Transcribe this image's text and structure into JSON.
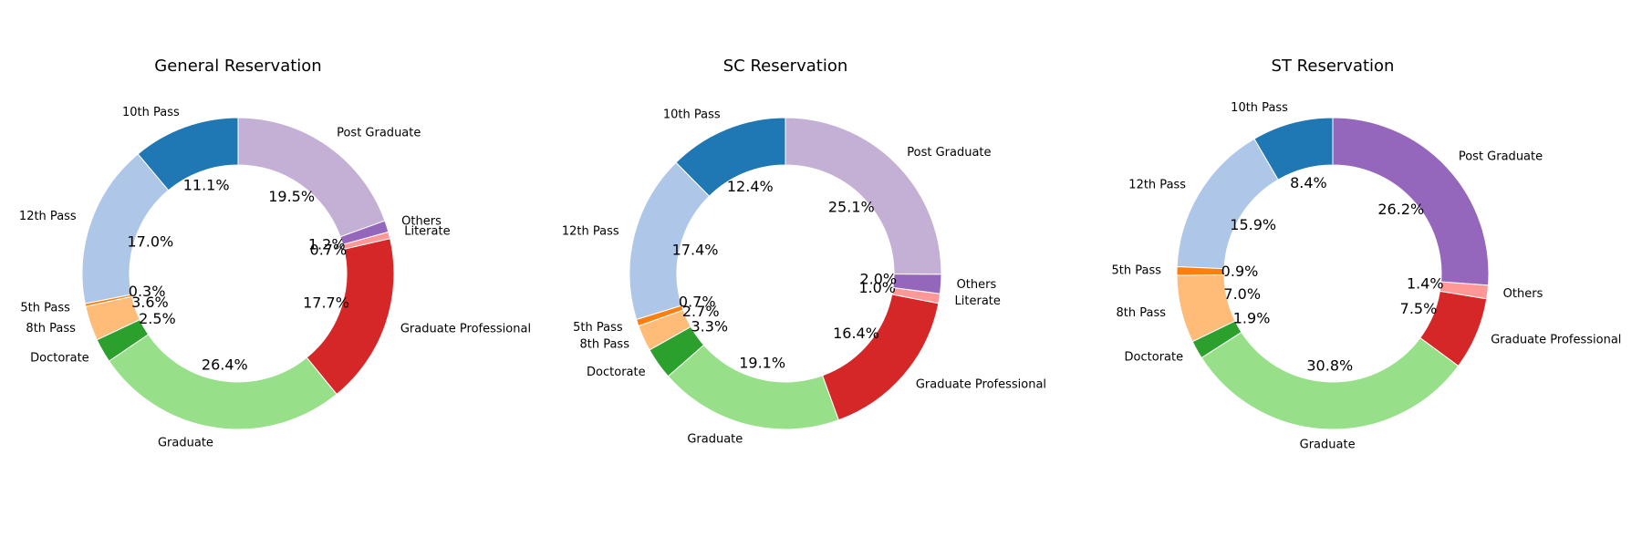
{
  "chart_data": [
    {
      "type": "pie",
      "title": "General Reservation",
      "slices": [
        {
          "label": "10th Pass",
          "value": 11.1,
          "pct_text": "11.1%",
          "color": "#1f77b4"
        },
        {
          "label": "12th Pass",
          "value": 17.0,
          "pct_text": "17.0%",
          "color": "#aec7e8"
        },
        {
          "label": "5th Pass",
          "value": 0.3,
          "pct_text": "0.3%",
          "color": "#ff7f0e"
        },
        {
          "label": "8th Pass",
          "value": 3.6,
          "pct_text": "3.6%",
          "color": "#ffbb78"
        },
        {
          "label": "Doctorate",
          "value": 2.5,
          "pct_text": "2.5%",
          "color": "#2ca02c"
        },
        {
          "label": "Graduate",
          "value": 26.4,
          "pct_text": "26.4%",
          "color": "#98df8a"
        },
        {
          "label": "Graduate Professional",
          "value": 17.7,
          "pct_text": "17.7%",
          "color": "#d62728"
        },
        {
          "label": "Literate",
          "value": 0.7,
          "pct_text": "0.7%",
          "color": "#ff9896"
        },
        {
          "label": "Others",
          "value": 1.2,
          "pct_text": "1.2%",
          "color": "#9467bd"
        },
        {
          "label": "Post Graduate",
          "value": 19.5,
          "pct_text": "19.5%",
          "color": "#c5b0d5"
        }
      ]
    },
    {
      "type": "pie",
      "title": "SC Reservation",
      "slices": [
        {
          "label": "10th Pass",
          "value": 12.4,
          "pct_text": "12.4%",
          "color": "#1f77b4"
        },
        {
          "label": "12th Pass",
          "value": 17.4,
          "pct_text": "17.4%",
          "color": "#aec7e8"
        },
        {
          "label": "5th Pass",
          "value": 0.7,
          "pct_text": "0.7%",
          "color": "#ff7f0e"
        },
        {
          "label": "8th Pass",
          "value": 2.7,
          "pct_text": "2.7%",
          "color": "#ffbb78"
        },
        {
          "label": "Doctorate",
          "value": 3.3,
          "pct_text": "3.3%",
          "color": "#2ca02c"
        },
        {
          "label": "Graduate",
          "value": 19.1,
          "pct_text": "19.1%",
          "color": "#98df8a"
        },
        {
          "label": "Graduate Professional",
          "value": 16.4,
          "pct_text": "16.4%",
          "color": "#d62728"
        },
        {
          "label": "Literate",
          "value": 1.0,
          "pct_text": "1.0%",
          "color": "#ff9896"
        },
        {
          "label": "Others",
          "value": 2.0,
          "pct_text": "2.0%",
          "color": "#9467bd"
        },
        {
          "label": "Post Graduate",
          "value": 25.1,
          "pct_text": "25.1%",
          "color": "#c5b0d5"
        }
      ]
    },
    {
      "type": "pie",
      "title": "ST Reservation",
      "slices": [
        {
          "label": "10th Pass",
          "value": 8.4,
          "pct_text": "8.4%",
          "color": "#1f77b4"
        },
        {
          "label": "12th Pass",
          "value": 15.9,
          "pct_text": "15.9%",
          "color": "#aec7e8"
        },
        {
          "label": "5th Pass",
          "value": 0.9,
          "pct_text": "0.9%",
          "color": "#ff7f0e"
        },
        {
          "label": "8th Pass",
          "value": 7.0,
          "pct_text": "7.0%",
          "color": "#ffbb78"
        },
        {
          "label": "Doctorate",
          "value": 1.9,
          "pct_text": "1.9%",
          "color": "#2ca02c"
        },
        {
          "label": "Graduate",
          "value": 30.8,
          "pct_text": "30.8%",
          "color": "#98df8a"
        },
        {
          "label": "Graduate Professional",
          "value": 7.5,
          "pct_text": "7.5%",
          "color": "#d62728"
        },
        {
          "label": "Others",
          "value": 1.4,
          "pct_text": "1.4%",
          "color": "#ff9896"
        },
        {
          "label": "Post Graduate",
          "value": 26.2,
          "pct_text": "26.2%",
          "color": "#9467bd"
        }
      ]
    }
  ]
}
